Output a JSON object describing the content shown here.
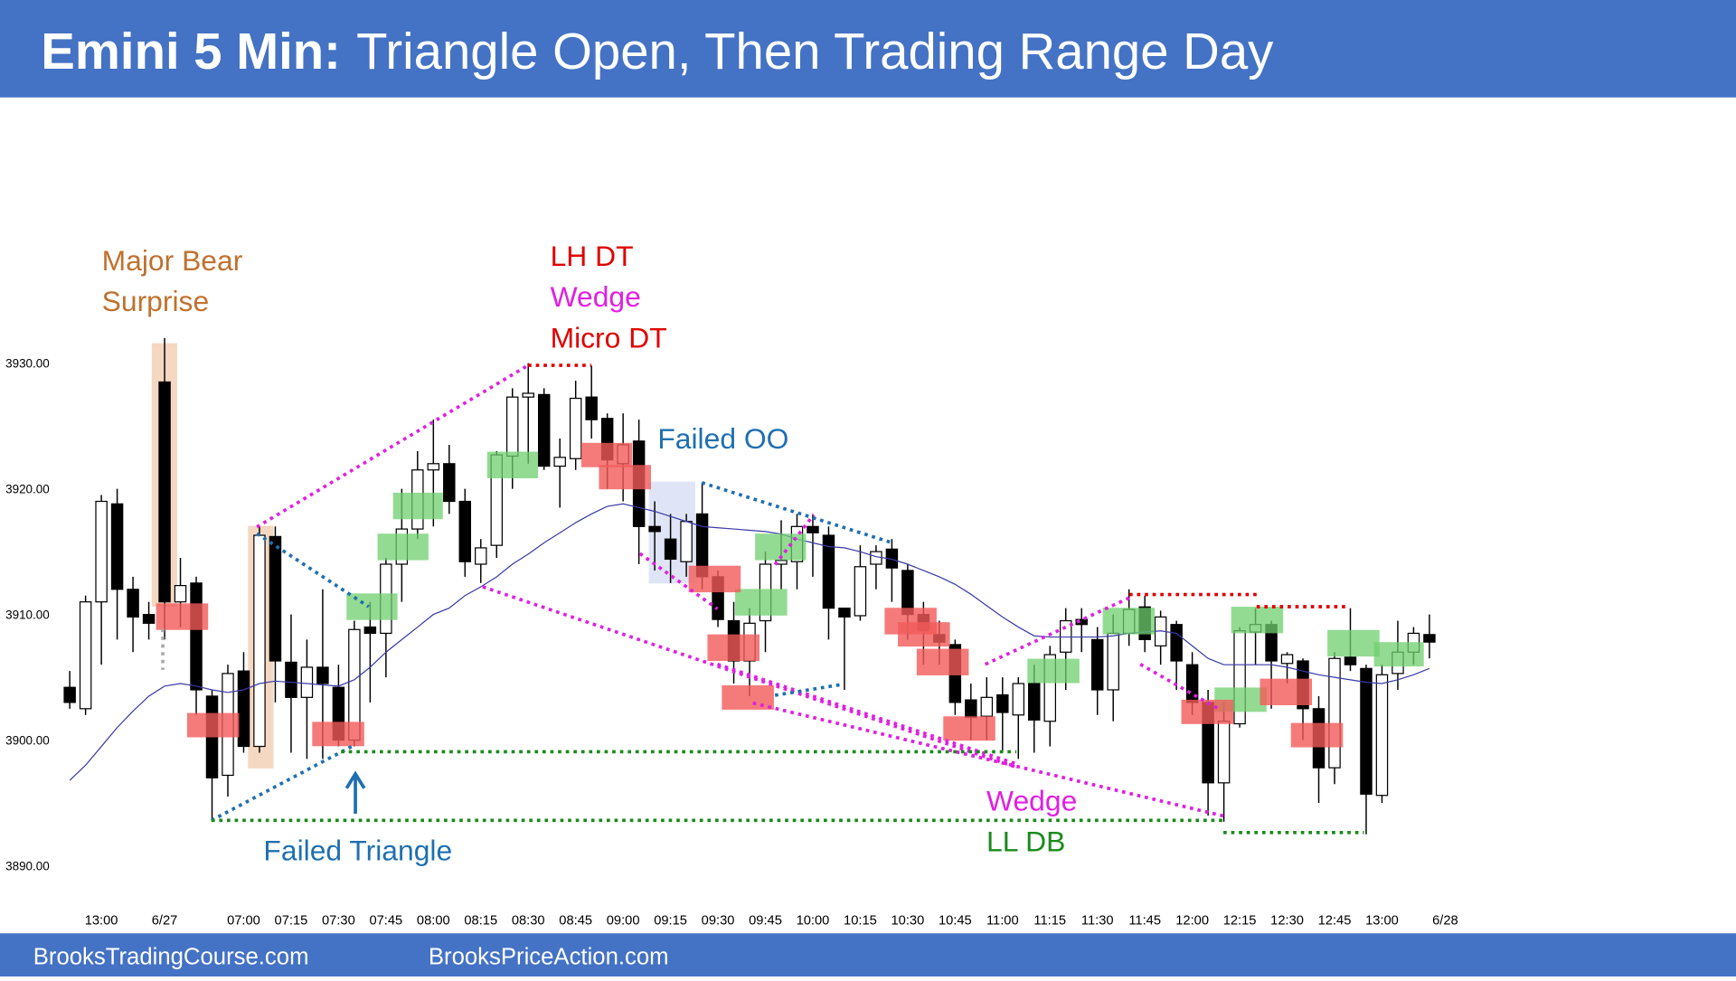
{
  "chart_data": {
    "type": "candlestick",
    "title_lead": "Emini 5 Min:",
    "title": "Triangle Open, Then Trading Range Day",
    "footer_left": "BrooksTradingCourse.com",
    "footer_right": "BrooksPriceAction.com",
    "categories": [
      null,
      null,
      "13:00",
      null,
      null,
      null,
      "6/27",
      null,
      null,
      null,
      null,
      "07:00",
      null,
      null,
      "07:15",
      null,
      null,
      "07:30",
      null,
      null,
      "07:45",
      null,
      null,
      "08:00",
      null,
      null,
      "08:15",
      null,
      null,
      "08:30",
      null,
      null,
      "08:45",
      null,
      null,
      "09:00",
      null,
      null,
      "09:15",
      null,
      null,
      "09:30",
      null,
      null,
      "09:45",
      null,
      null,
      "10:00",
      null,
      null,
      "10:15",
      null,
      null,
      "10:30",
      null,
      null,
      "10:45",
      null,
      null,
      "11:00",
      null,
      null,
      "11:15",
      null,
      null,
      "11:30",
      null,
      null,
      "11:45",
      null,
      null,
      "12:00",
      null,
      null,
      "12:15",
      null,
      null,
      "12:30",
      null,
      null,
      "12:45",
      null,
      null,
      "13:00",
      null,
      null,
      null,
      "6/28"
    ],
    "open": [
      3904.2,
      3902.5,
      3911,
      3918.8,
      3912,
      3910,
      3928.5,
      3911,
      3912.5,
      3903.5,
      3897.2,
      3905.5,
      3899.5,
      3916.2,
      3906.2,
      3903.4,
      3905.8,
      3904.2,
      3900,
      3909,
      3908.5,
      3914,
      3916.8,
      3921.5,
      3922,
      3919,
      3914,
      3915.5,
      3922.6,
      3927.3,
      3927.5,
      3921.8,
      3922.4,
      3927.3,
      3925.6,
      3922,
      3923.8,
      3917,
      3916,
      3914.2,
      3918,
      3913,
      3909.5,
      3906.3,
      3909.5,
      3914,
      3914.2,
      3917,
      3916.3,
      3910.5,
      3909.9,
      3914,
      3915.2,
      3913.5,
      3910,
      3908.4,
      3907.6,
      3903.2,
      3901.9,
      3903.6,
      3902,
      3904.5,
      3901.5,
      3907,
      3909.6,
      3908,
      3904,
      3908.5,
      3910.6,
      3907.5,
      3909.2,
      3906,
      3903,
      3896.6,
      3901.3,
      3908.6,
      3909.2,
      3906.1,
      3906.3,
      3902.5,
      3897.8,
      3906.6,
      3905.7,
      3895.6,
      3905.3,
      3907,
      3908.4,
      null
    ],
    "high": [
      3905.5,
      3911.5,
      3919.5,
      3920,
      3913,
      3911,
      3932,
      3914.5,
      3913,
      3904,
      3906,
      3907,
      3917,
      3917,
      3910,
      3908,
      3912,
      3906,
      3909.5,
      3911,
      3914.5,
      3920,
      3923,
      3925.5,
      3923.5,
      3920,
      3916,
      3923,
      3928,
      3930,
      3928,
      3924,
      3928.6,
      3929.8,
      3926,
      3926,
      3925.5,
      3919,
      3918,
      3918,
      3920.5,
      3913.5,
      3911,
      3910.5,
      3915,
      3917.5,
      3918,
      3918,
      3917,
      3910.5,
      3915.5,
      3915.5,
      3916,
      3914,
      3911,
      3909.5,
      3908,
      3904.5,
      3905,
      3905,
      3905,
      3906,
      3907.5,
      3910.5,
      3910.5,
      3909,
      3910,
      3912,
      3911.5,
      3910.3,
      3909.5,
      3907,
      3904,
      3903,
      3909,
      3910.5,
      3909.5,
      3907,
      3906.5,
      3903.5,
      3907,
      3910.5,
      3906,
      3906,
      3909.5,
      3909,
      3910,
      null
    ],
    "low": [
      3902.5,
      3902,
      3906,
      3908,
      3907,
      3908,
      3908,
      3909,
      3902,
      3893.5,
      3895.5,
      3899,
      3899,
      3903,
      3899,
      3898.5,
      3898.5,
      3899.5,
      3899.5,
      3903,
      3905,
      3911,
      3916,
      3917,
      3918,
      3913,
      3912.5,
      3914.5,
      3920,
      3922,
      3921.5,
      3918.5,
      3921.5,
      3924,
      3920,
      3919,
      3914,
      3913.5,
      3912.5,
      3913,
      3912,
      3909,
      3904.5,
      3903.5,
      3907,
      3912,
      3912,
      3913,
      3908,
      3904,
      3909.5,
      3912,
      3911,
      3908,
      3906,
      3906,
      3902,
      3900,
      3900,
      3899,
      3898.5,
      3899,
      3899.5,
      3904,
      3907,
      3902,
      3901.5,
      3907.5,
      3907,
      3906,
      3904,
      3902,
      3894,
      3893.5,
      3901,
      3906,
      3902.5,
      3904.5,
      3900,
      3895,
      3896.5,
      3905.5,
      3892.5,
      3895,
      3904,
      3906,
      3906.5,
      null
    ],
    "close": [
      3903,
      3911,
      3919,
      3912,
      3909.8,
      3909.3,
      3911,
      3912.3,
      3904,
      3897,
      3905.3,
      3899.5,
      3916.3,
      3906.3,
      3903.4,
      3905.8,
      3904.5,
      3900,
      3908.8,
      3908.5,
      3914,
      3916.8,
      3921.5,
      3922,
      3919,
      3914.2,
      3915.3,
      3922.7,
      3927.3,
      3927.6,
      3921.8,
      3922.5,
      3927.2,
      3925.5,
      3922.3,
      3923.5,
      3917,
      3916.6,
      3914.4,
      3917.4,
      3913,
      3909.6,
      3906.3,
      3909.3,
      3914,
      3914.3,
      3917,
      3916.5,
      3910.5,
      3909.8,
      3913.8,
      3915,
      3913.7,
      3910,
      3908.7,
      3907.8,
      3903,
      3901.8,
      3903.4,
      3902.2,
      3904.5,
      3901.6,
      3906.8,
      3909.5,
      3909.2,
      3904,
      3908.5,
      3910.4,
      3908,
      3909.8,
      3906.3,
      3903,
      3896.6,
      3901.5,
      3908.7,
      3909.2,
      3906.3,
      3906.8,
      3902.5,
      3897.8,
      3906.5,
      3906,
      3895.7,
      3905.2,
      3907,
      3908.5,
      3907.8,
      null
    ],
    "up_color": "#ffffff",
    "down_color": "#000000",
    "ma": {
      "color": "#3a3aa8",
      "values": [
        3896.8,
        3898,
        3899.5,
        3901,
        3902.3,
        3903.5,
        3904.3,
        3904.5,
        3904.3,
        3904,
        3903.8,
        3904,
        3904.5,
        3904.7,
        3904.6,
        3904.5,
        3904.4,
        3904.3,
        3904.8,
        3905.8,
        3907,
        3908,
        3909,
        3910,
        3910.5,
        3911.5,
        3912.2,
        3913,
        3914,
        3914.8,
        3915.7,
        3916.5,
        3917.3,
        3918,
        3918.6,
        3918.8,
        3918.5,
        3918.2,
        3917.8,
        3917.4,
        3917,
        3916.9,
        3916.8,
        3916.7,
        3916.6,
        3916.4,
        3916,
        3915.7,
        3915.4,
        3915.3,
        3915,
        3914.6,
        3914.4,
        3914,
        3913.5,
        3913,
        3912.4,
        3911.6,
        3910.7,
        3909.8,
        3909,
        3908.3,
        3908.2,
        3908.2,
        3908.2,
        3908.2,
        3908.3,
        3908.5,
        3908.6,
        3908.7,
        3908.5,
        3907.5,
        3906.5,
        3906,
        3906,
        3906,
        3906,
        3905.8,
        3905.5,
        3905.2,
        3905,
        3904.8,
        3904.6,
        3904.5,
        3904.8,
        3905.2,
        3905.7,
        null
      ]
    },
    "ylim": [
      3888,
      3932
    ],
    "yticks": [
      {
        "value": 3890,
        "label": "3890.00"
      },
      {
        "value": 3900,
        "label": "3900.00"
      },
      {
        "value": 3910,
        "label": "3910.00"
      },
      {
        "value": 3920,
        "label": "3920.00"
      },
      {
        "value": 3930,
        "label": "3930.00"
      }
    ],
    "annotations": [
      {
        "text": "Major Bear",
        "color": "#c0712f"
      },
      {
        "text": "Surprise",
        "color": "#c0712f"
      },
      {
        "text": "LH DT",
        "color": "#e00000"
      },
      {
        "text": "Wedge",
        "color": "#e020e0"
      },
      {
        "text": "Micro DT",
        "color": "#e00000"
      },
      {
        "text": "Failed OO",
        "color": "#1f6fb0"
      },
      {
        "text": "Failed Triangle",
        "color": "#1f6fb0"
      },
      {
        "text": "Wedge",
        "color": "#e020e0"
      },
      {
        "text": "LL DB",
        "color": "#1a8a1a"
      }
    ]
  }
}
